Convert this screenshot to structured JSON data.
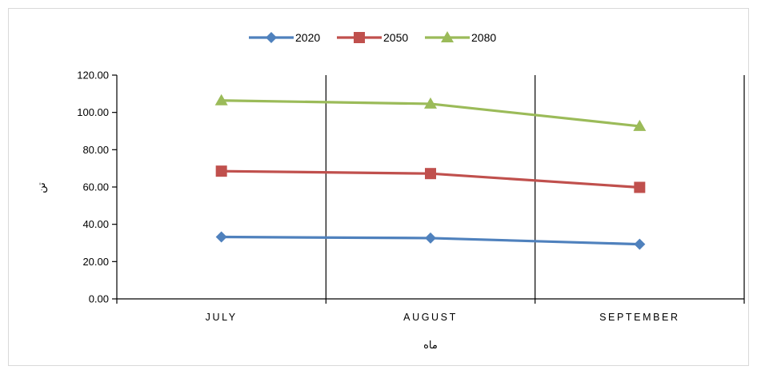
{
  "chart_data": {
    "type": "line",
    "categories": [
      "JULY",
      "AUGUST",
      "SEPTEMBER"
    ],
    "series": [
      {
        "name": "2020",
        "values": [
          33.2,
          32.6,
          29.3
        ],
        "color": "#4F81BD",
        "marker": "diamond"
      },
      {
        "name": "2050",
        "values": [
          68.5,
          67.2,
          59.8
        ],
        "color": "#C0504D",
        "marker": "square"
      },
      {
        "name": "2080",
        "values": [
          106.4,
          104.6,
          92.6
        ],
        "color": "#9BBB59",
        "marker": "triangle"
      }
    ],
    "xlabel": "ماه",
    "ylabel": "تن",
    "ylim": [
      0,
      120
    ],
    "ytick_step": 20,
    "ytick_format_decimals": 2,
    "legend_position": "top",
    "grid": "vertical category separators"
  }
}
